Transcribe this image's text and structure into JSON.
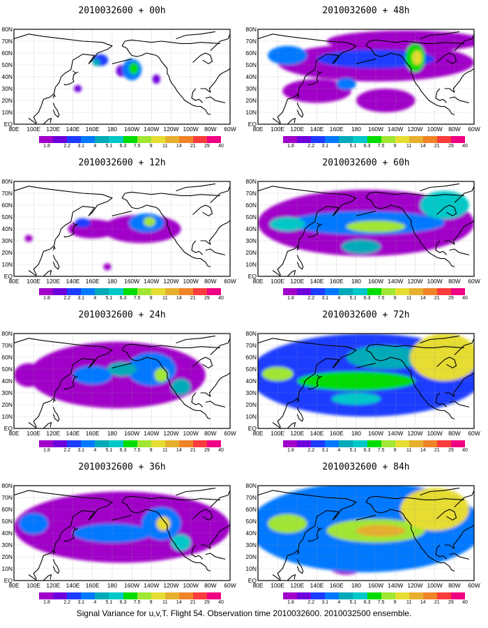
{
  "palette": {
    "levels": [
      "1.8",
      "2.2",
      "3.1",
      "4",
      "5.1",
      "6.3",
      "7.5",
      "9",
      "11",
      "14",
      "21",
      "29",
      "40"
    ],
    "colors": [
      "#a000c8",
      "#6e00dc",
      "#1e3cff",
      "#0078ff",
      "#00aab9",
      "#00c8c8",
      "#00dc00",
      "#a0e632",
      "#e6dc32",
      "#e6af2d",
      "#f08228",
      "#fa3c3c",
      "#f00082"
    ],
    "lowest_color": "#a000c8"
  },
  "lon_labels": [
    "80E",
    "100E",
    "120E",
    "140E",
    "160E",
    "180",
    "160W",
    "140W",
    "120W",
    "100W",
    "80W",
    "60W"
  ],
  "lat_labels": [
    "EQ",
    "10N",
    "20N",
    "30N",
    "40N",
    "50N",
    "60N",
    "70N",
    "80N"
  ],
  "lon_range": [
    80,
    300
  ],
  "lat_range": [
    0,
    80
  ],
  "panels": [
    {
      "title": "2010032600 + 00h",
      "blobs": [
        {
          "lon": 200,
          "lat": 46,
          "rx": 10,
          "ry": 9,
          "v": 3
        },
        {
          "lon": 202,
          "lat": 47,
          "rx": 5,
          "ry": 5,
          "v": 6
        },
        {
          "lon": 168,
          "lat": 54,
          "rx": 8,
          "ry": 5,
          "v": 2
        },
        {
          "lon": 164,
          "lat": 52,
          "rx": 4,
          "ry": 3,
          "v": 4
        },
        {
          "lon": 145,
          "lat": 30,
          "rx": 4,
          "ry": 3,
          "v": 1
        },
        {
          "lon": 225,
          "lat": 38,
          "rx": 4,
          "ry": 4,
          "v": 1
        },
        {
          "lon": 190,
          "lat": 45,
          "rx": 6,
          "ry": 5,
          "v": 1
        }
      ]
    },
    {
      "title": "2010032600 + 48h",
      "blobs": [
        {
          "lon": 200,
          "lat": 52,
          "rx": 100,
          "ry": 16,
          "v": 0
        },
        {
          "lon": 140,
          "lat": 28,
          "rx": 35,
          "ry": 10,
          "v": 0
        },
        {
          "lon": 210,
          "lat": 20,
          "rx": 30,
          "ry": 10,
          "v": 0
        },
        {
          "lon": 230,
          "lat": 70,
          "rx": 80,
          "ry": 9,
          "v": 0
        },
        {
          "lon": 200,
          "lat": 55,
          "rx": 60,
          "ry": 8,
          "v": 2
        },
        {
          "lon": 110,
          "lat": 58,
          "rx": 20,
          "ry": 8,
          "v": 3
        },
        {
          "lon": 240,
          "lat": 56,
          "rx": 10,
          "ry": 12,
          "v": 6
        },
        {
          "lon": 242,
          "lat": 56,
          "rx": 5,
          "ry": 6,
          "v": 8
        },
        {
          "lon": 170,
          "lat": 34,
          "rx": 10,
          "ry": 5,
          "v": 3
        }
      ]
    },
    {
      "title": "2010032600 + 12h",
      "blobs": [
        {
          "lon": 210,
          "lat": 40,
          "rx": 40,
          "ry": 12,
          "v": 0
        },
        {
          "lon": 215,
          "lat": 45,
          "rx": 18,
          "ry": 8,
          "v": 3
        },
        {
          "lon": 218,
          "lat": 46,
          "rx": 6,
          "ry": 4,
          "v": 7
        },
        {
          "lon": 160,
          "lat": 40,
          "rx": 25,
          "ry": 8,
          "v": 0
        },
        {
          "lon": 150,
          "lat": 45,
          "rx": 8,
          "ry": 4,
          "v": 2
        },
        {
          "lon": 95,
          "lat": 32,
          "rx": 4,
          "ry": 3,
          "v": 0
        },
        {
          "lon": 175,
          "lat": 8,
          "rx": 4,
          "ry": 3,
          "v": 0
        }
      ]
    },
    {
      "title": "2010032600 + 60h",
      "blobs": [
        {
          "lon": 190,
          "lat": 45,
          "rx": 110,
          "ry": 28,
          "v": 0
        },
        {
          "lon": 190,
          "lat": 45,
          "rx": 80,
          "ry": 10,
          "v": 3
        },
        {
          "lon": 200,
          "lat": 42,
          "rx": 30,
          "ry": 5,
          "v": 7
        },
        {
          "lon": 110,
          "lat": 44,
          "rx": 18,
          "ry": 6,
          "v": 5
        },
        {
          "lon": 270,
          "lat": 60,
          "rx": 25,
          "ry": 12,
          "v": 5
        },
        {
          "lon": 185,
          "lat": 25,
          "rx": 20,
          "ry": 6,
          "v": 4
        }
      ]
    },
    {
      "title": "2010032600 + 24h",
      "blobs": [
        {
          "lon": 185,
          "lat": 45,
          "rx": 90,
          "ry": 28,
          "v": 0
        },
        {
          "lon": 220,
          "lat": 50,
          "rx": 25,
          "ry": 14,
          "v": 3
        },
        {
          "lon": 230,
          "lat": 45,
          "rx": 7,
          "ry": 6,
          "v": 7
        },
        {
          "lon": 160,
          "lat": 45,
          "rx": 20,
          "ry": 8,
          "v": 3
        },
        {
          "lon": 250,
          "lat": 35,
          "rx": 10,
          "ry": 7,
          "v": 4
        },
        {
          "lon": 190,
          "lat": 50,
          "rx": 15,
          "ry": 6,
          "v": 4
        },
        {
          "lon": 95,
          "lat": 45,
          "rx": 15,
          "ry": 10,
          "v": 0
        }
      ]
    },
    {
      "title": "2010032600 + 72h",
      "blobs": [
        {
          "lon": 190,
          "lat": 45,
          "rx": 120,
          "ry": 35,
          "v": 2
        },
        {
          "lon": 180,
          "lat": 40,
          "rx": 60,
          "ry": 8,
          "v": 6
        },
        {
          "lon": 100,
          "lat": 46,
          "rx": 16,
          "ry": 6,
          "v": 7
        },
        {
          "lon": 270,
          "lat": 60,
          "rx": 35,
          "ry": 20,
          "v": 8
        },
        {
          "lon": 180,
          "lat": 25,
          "rx": 25,
          "ry": 5,
          "v": 5
        },
        {
          "lon": 210,
          "lat": 60,
          "rx": 40,
          "ry": 10,
          "v": 4
        }
      ]
    },
    {
      "title": "2010032600 + 36h",
      "blobs": [
        {
          "lon": 190,
          "lat": 45,
          "rx": 110,
          "ry": 30,
          "v": 0
        },
        {
          "lon": 230,
          "lat": 48,
          "rx": 20,
          "ry": 14,
          "v": 3
        },
        {
          "lon": 232,
          "lat": 48,
          "rx": 7,
          "ry": 6,
          "v": 8
        },
        {
          "lon": 250,
          "lat": 32,
          "rx": 10,
          "ry": 7,
          "v": 5
        },
        {
          "lon": 100,
          "lat": 48,
          "rx": 15,
          "ry": 9,
          "v": 3
        },
        {
          "lon": 180,
          "lat": 40,
          "rx": 40,
          "ry": 8,
          "v": 3
        }
      ]
    },
    {
      "title": "2010032600 + 84h",
      "blobs": [
        {
          "lon": 190,
          "lat": 45,
          "rx": 120,
          "ry": 38,
          "v": 3
        },
        {
          "lon": 200,
          "lat": 42,
          "rx": 50,
          "ry": 10,
          "v": 7
        },
        {
          "lon": 205,
          "lat": 42,
          "rx": 25,
          "ry": 5,
          "v": 9
        },
        {
          "lon": 110,
          "lat": 48,
          "rx": 20,
          "ry": 8,
          "v": 7
        },
        {
          "lon": 260,
          "lat": 60,
          "rx": 35,
          "ry": 18,
          "v": 8
        },
        {
          "lon": 170,
          "lat": 15,
          "rx": 20,
          "ry": 10,
          "v": 0
        }
      ]
    }
  ],
  "footer": "Signal Variance for u,v,T. Flight 54. Observation time 2010032600. 2010032500 ensemble."
}
